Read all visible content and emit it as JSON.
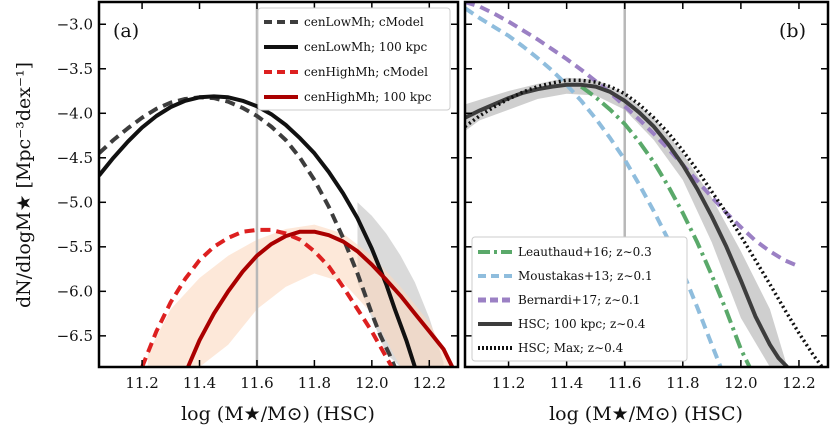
{
  "ylabel": "dN/dlogM★ [Mpc⁻³dex⁻¹]",
  "chart_data": [
    {
      "type": "line",
      "panel_label": "(a)",
      "xlabel": "log (M★/M⊙) (HSC)",
      "xlim": [
        11.05,
        12.3
      ],
      "ylim": [
        -6.85,
        -2.75
      ],
      "xticks": [
        11.2,
        11.4,
        11.6,
        11.8,
        12.0,
        12.2
      ],
      "yticks": [
        -3.0,
        -3.5,
        -4.0,
        -4.5,
        -5.0,
        -5.5,
        -6.0,
        -6.5
      ],
      "vline": 11.6,
      "legend_position": "top-right",
      "bands": [
        {
          "name": "cenLowMh band",
          "color": "#bbbbbb",
          "opacity": 0.55,
          "x": [
            11.95,
            12.0,
            12.05,
            12.1,
            12.15,
            12.2,
            12.25,
            12.25,
            12.2,
            12.15,
            12.1,
            12.05,
            12.0,
            11.95
          ],
          "upper": [
            -5.0,
            -5.15,
            -5.35,
            -5.6,
            -5.9,
            -6.3,
            -6.8,
            -6.85,
            -6.85,
            -6.85,
            -6.85,
            -6.7,
            -6.3,
            -5.9
          ],
          "lower": []
        },
        {
          "name": "cenHighMh band",
          "color": "#fbd8c0",
          "opacity": 0.6,
          "x": [
            11.22,
            11.3,
            11.4,
            11.5,
            11.6,
            11.7,
            11.8,
            11.9,
            12.0,
            12.1,
            12.2,
            12.28
          ],
          "upper": [
            -6.7,
            -6.2,
            -5.85,
            -5.6,
            -5.42,
            -5.3,
            -5.25,
            -5.35,
            -5.6,
            -5.95,
            -6.35,
            -6.85
          ],
          "lower": [
            -6.85,
            -6.85,
            -6.85,
            -6.6,
            -6.2,
            -5.95,
            -5.8,
            -5.9,
            -6.25,
            -6.85,
            -6.85,
            -6.85
          ]
        }
      ],
      "series": [
        {
          "name": "cenLowMh; cModel",
          "color": "#3d3d3d",
          "style": "dashed",
          "x": [
            11.05,
            11.1,
            11.15,
            11.2,
            11.25,
            11.3,
            11.35,
            11.4,
            11.45,
            11.5,
            11.55,
            11.6,
            11.65,
            11.7,
            11.75,
            11.8,
            11.85,
            11.9,
            11.95,
            12.0,
            12.03,
            12.06,
            12.08
          ],
          "y": [
            -4.45,
            -4.3,
            -4.17,
            -4.05,
            -3.95,
            -3.88,
            -3.84,
            -3.82,
            -3.83,
            -3.87,
            -3.94,
            -4.03,
            -4.15,
            -4.3,
            -4.5,
            -4.75,
            -5.05,
            -5.4,
            -5.8,
            -6.25,
            -6.5,
            -6.7,
            -6.85
          ]
        },
        {
          "name": "cenLowMh; 100 kpc",
          "color": "#111111",
          "style": "solid",
          "x": [
            11.05,
            11.1,
            11.15,
            11.2,
            11.25,
            11.3,
            11.35,
            11.4,
            11.45,
            11.5,
            11.55,
            11.6,
            11.65,
            11.7,
            11.75,
            11.8,
            11.85,
            11.9,
            11.95,
            12.0,
            12.05,
            12.08,
            12.12,
            12.15
          ],
          "y": [
            -4.7,
            -4.5,
            -4.32,
            -4.16,
            -4.03,
            -3.93,
            -3.86,
            -3.82,
            -3.81,
            -3.82,
            -3.86,
            -3.92,
            -4.01,
            -4.13,
            -4.28,
            -4.45,
            -4.66,
            -4.9,
            -5.18,
            -5.52,
            -5.92,
            -6.2,
            -6.55,
            -6.85
          ]
        },
        {
          "name": "cenHighMh; cModel",
          "color": "#dd2020",
          "style": "dashed",
          "x": [
            11.2,
            11.25,
            11.3,
            11.35,
            11.4,
            11.45,
            11.5,
            11.55,
            11.6,
            11.65,
            11.7,
            11.75,
            11.8,
            11.85,
            11.9,
            11.95,
            12.0,
            12.04,
            12.07
          ],
          "y": [
            -6.85,
            -6.45,
            -6.12,
            -5.86,
            -5.65,
            -5.5,
            -5.4,
            -5.33,
            -5.31,
            -5.31,
            -5.35,
            -5.42,
            -5.55,
            -5.72,
            -5.95,
            -6.2,
            -6.45,
            -6.68,
            -6.85
          ]
        },
        {
          "name": "cenHighMh; 100 kpc",
          "color": "#aa0000",
          "style": "solid",
          "x": [
            11.36,
            11.4,
            11.45,
            11.5,
            11.55,
            11.6,
            11.65,
            11.7,
            11.75,
            11.8,
            11.85,
            11.9,
            11.95,
            12.0,
            12.05,
            12.1,
            12.15,
            12.2,
            12.25,
            12.28
          ],
          "y": [
            -6.85,
            -6.55,
            -6.25,
            -6.0,
            -5.78,
            -5.6,
            -5.47,
            -5.38,
            -5.33,
            -5.33,
            -5.37,
            -5.44,
            -5.55,
            -5.7,
            -5.87,
            -6.05,
            -6.25,
            -6.45,
            -6.65,
            -6.85
          ]
        }
      ]
    },
    {
      "type": "line",
      "panel_label": "(b)",
      "xlabel": "log (M★/M⊙) (HSC)",
      "xlim": [
        11.05,
        12.3
      ],
      "ylim": [
        -6.85,
        -2.75
      ],
      "xticks": [
        11.2,
        11.4,
        11.6,
        11.8,
        12.0,
        12.2
      ],
      "yticks": [
        -3.0,
        -3.5,
        -4.0,
        -4.5,
        -5.0,
        -5.5,
        -6.0,
        -6.5
      ],
      "vline": 11.6,
      "legend_position": "bottom-left",
      "bands": [
        {
          "name": "HSC 100 kpc band",
          "color": "#bbbbbb",
          "opacity": 0.7,
          "x": [
            11.05,
            11.1,
            11.2,
            11.3,
            11.4,
            11.5,
            11.6,
            11.7,
            11.8,
            11.9,
            12.0,
            12.1,
            12.16
          ],
          "upper": [
            -3.9,
            -3.85,
            -3.75,
            -3.67,
            -3.6,
            -3.62,
            -3.78,
            -4.05,
            -4.45,
            -4.95,
            -5.55,
            -6.2,
            -6.85
          ],
          "lower": [
            -4.2,
            -4.08,
            -3.96,
            -3.84,
            -3.78,
            -3.8,
            -3.96,
            -4.3,
            -4.75,
            -5.45,
            -6.3,
            -6.85,
            -6.85
          ]
        }
      ],
      "series": [
        {
          "name": "Leauthaud+16; z∼0.3",
          "color": "#5aa96a",
          "style": "dashdot",
          "x": [
            11.45,
            11.5,
            11.55,
            11.6,
            11.65,
            11.7,
            11.75,
            11.8,
            11.85,
            11.9,
            11.95,
            12.0,
            12.03
          ],
          "y": [
            -3.7,
            -3.82,
            -3.96,
            -4.12,
            -4.32,
            -4.55,
            -4.82,
            -5.12,
            -5.45,
            -5.82,
            -6.22,
            -6.65,
            -6.85
          ]
        },
        {
          "name": "Moustakas+13; z∼0.1",
          "color": "#8fbddd",
          "style": "dashed",
          "x": [
            11.05,
            11.1,
            11.15,
            11.2,
            11.25,
            11.3,
            11.35,
            11.4,
            11.45,
            11.5,
            11.55,
            11.6,
            11.65,
            11.7,
            11.75,
            11.8,
            11.85,
            11.9,
            11.93
          ],
          "y": [
            -2.82,
            -2.93,
            -3.03,
            -3.13,
            -3.25,
            -3.38,
            -3.52,
            -3.68,
            -3.86,
            -4.06,
            -4.28,
            -4.52,
            -4.8,
            -5.1,
            -5.42,
            -5.78,
            -6.18,
            -6.6,
            -6.85
          ]
        },
        {
          "name": "Bernardi+17; z∼0.1",
          "color": "#9b80c4",
          "style": "dashed",
          "x": [
            11.05,
            11.1,
            11.15,
            11.2,
            11.25,
            11.3,
            11.35,
            11.4,
            11.45,
            11.5,
            11.55,
            11.6,
            11.65,
            11.7,
            11.75,
            11.8,
            11.85,
            11.9,
            11.95,
            12.0,
            12.05,
            12.1,
            12.15,
            12.2
          ],
          "y": [
            -2.75,
            -2.8,
            -2.88,
            -2.97,
            -3.07,
            -3.17,
            -3.28,
            -3.39,
            -3.51,
            -3.64,
            -3.77,
            -3.92,
            -4.07,
            -4.23,
            -4.4,
            -4.58,
            -4.76,
            -4.94,
            -5.12,
            -5.28,
            -5.43,
            -5.55,
            -5.65,
            -5.72
          ]
        },
        {
          "name": "HSC; 100 kpc; z∼0.4",
          "color": "#3d3d3d",
          "style": "solid",
          "x": [
            11.05,
            11.1,
            11.15,
            11.2,
            11.25,
            11.3,
            11.35,
            11.4,
            11.45,
            11.5,
            11.55,
            11.6,
            11.65,
            11.7,
            11.75,
            11.8,
            11.85,
            11.9,
            11.95,
            12.0,
            12.05,
            12.1,
            12.13,
            12.16
          ],
          "y": [
            -4.05,
            -3.97,
            -3.9,
            -3.83,
            -3.77,
            -3.73,
            -3.7,
            -3.68,
            -3.68,
            -3.7,
            -3.76,
            -3.86,
            -3.99,
            -4.15,
            -4.35,
            -4.58,
            -4.85,
            -5.16,
            -5.5,
            -5.88,
            -6.28,
            -6.6,
            -6.75,
            -6.85
          ]
        },
        {
          "name": "HSC; Max; z∼0.4",
          "color": "#111111",
          "style": "dotted",
          "x": [
            11.05,
            11.1,
            11.15,
            11.2,
            11.25,
            11.3,
            11.35,
            11.4,
            11.45,
            11.5,
            11.55,
            11.6,
            11.65,
            11.7,
            11.75,
            11.8,
            11.85,
            11.9,
            11.95,
            12.0,
            12.05,
            12.1,
            12.15,
            12.2,
            12.25,
            12.28
          ],
          "y": [
            -4.15,
            -4.03,
            -3.93,
            -3.84,
            -3.76,
            -3.7,
            -3.66,
            -3.63,
            -3.63,
            -3.65,
            -3.7,
            -3.78,
            -3.9,
            -4.05,
            -4.22,
            -4.42,
            -4.64,
            -4.88,
            -5.12,
            -5.38,
            -5.65,
            -5.92,
            -6.2,
            -6.47,
            -6.72,
            -6.85
          ]
        }
      ]
    }
  ]
}
